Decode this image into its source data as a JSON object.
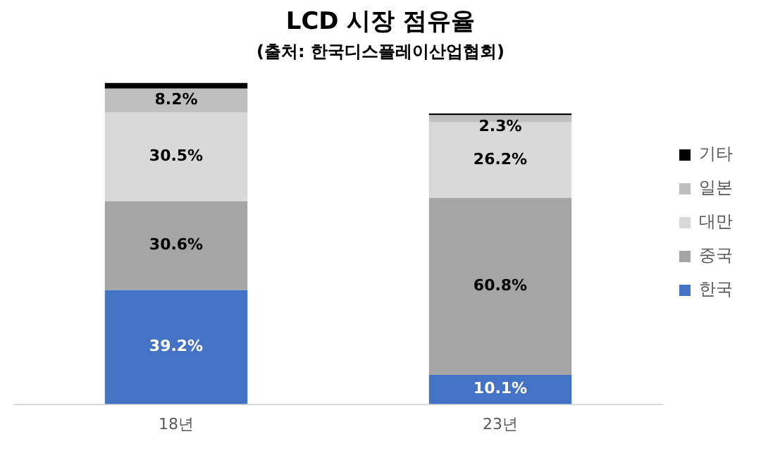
{
  "chart_data": {
    "type": "bar",
    "title": "LCD 시장 점유율",
    "subtitle": "(출처: 한국디스플레이산업협회)",
    "categories": [
      "18년",
      "23년"
    ],
    "stacked": true,
    "legend": "right",
    "grid": false,
    "series": [
      {
        "name": "한국",
        "color": "#4472c4",
        "values": [
          39.2,
          10.1
        ],
        "value_labels": [
          "39.2%",
          "10.1%"
        ]
      },
      {
        "name": "중국",
        "color": "#a5a5a5",
        "values": [
          30.6,
          60.8
        ],
        "value_labels": [
          "30.6%",
          "60.8%"
        ]
      },
      {
        "name": "대만",
        "color": "#d9d9d9",
        "values": [
          30.5,
          26.2
        ],
        "value_labels": [
          "30.5%",
          "26.2%"
        ]
      },
      {
        "name": "일본",
        "color": "#bfbfbf",
        "values": [
          8.2,
          2.3
        ],
        "value_labels": [
          "8.2%",
          "2.3%"
        ]
      },
      {
        "name": "기타",
        "color": "#000000",
        "values": [
          2,
          0.6
        ],
        "value_labels": [
          null,
          null
        ]
      }
    ]
  }
}
